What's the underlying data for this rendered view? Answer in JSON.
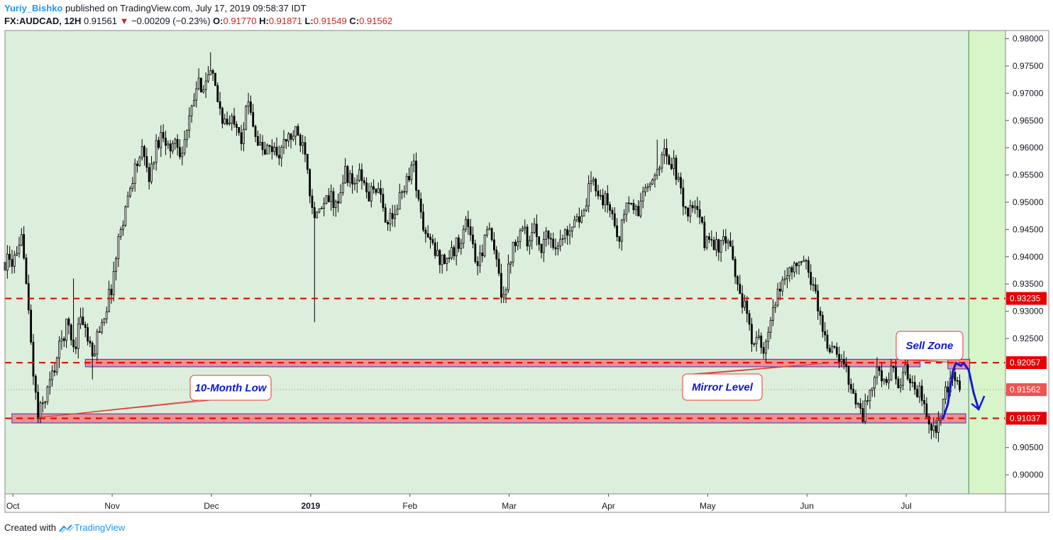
{
  "header": {
    "author": "Yuriy_Bishko",
    "published": "published on TradingView.com, July 17, 2019 09:58:37 IDT",
    "symbol": "FX:AUDCAD, 12H",
    "last": "0.91561",
    "change": "−0.00209 (−0.23%)",
    "o_label": "O:",
    "o": "0.91770",
    "h_label": "H:",
    "h": "0.91871",
    "l_label": "L:",
    "l": "0.91549",
    "c_label": "C:",
    "c": "0.91562"
  },
  "footer": {
    "created": "Created with",
    "brand": "TradingView"
  },
  "colors": {
    "background_zone": "#dcefdc",
    "forecast_zone": "#d7f5c9",
    "candle": "#000000",
    "level_line": "#e60000",
    "zone_fill": "#f08080",
    "zone_border": "#3b2fd6",
    "callout_border": "#e53935",
    "arrow": "#1515e0"
  },
  "chart_data": {
    "type": "candlestick",
    "symbol": "FX:AUDCAD",
    "timeframe": "12H",
    "ylim": [
      0.8965,
      0.9815
    ],
    "x_tick_labels": [
      "Oct",
      "Nov",
      "Dec",
      "2019",
      "Feb",
      "Mar",
      "Apr",
      "May",
      "Jun",
      "Jul"
    ],
    "x_tick_months": [
      0,
      1,
      2,
      3,
      4,
      5,
      6,
      7,
      8,
      9
    ],
    "month_start_of_range": -0.08,
    "month_end_of_range": 10.0,
    "y_ticks": [
      0.98,
      0.975,
      0.97,
      0.965,
      0.96,
      0.955,
      0.95,
      0.945,
      0.94,
      0.935,
      0.93,
      0.925,
      0.92,
      0.915,
      0.91,
      0.905,
      0.9
    ],
    "y_tick_labels": [
      "0.98000",
      "0.97500",
      "0.97000",
      "0.96500",
      "0.96000",
      "0.95500",
      "0.95000",
      "0.94500",
      "0.94000",
      "0.93500",
      "0.93000",
      "0.92500",
      "0.92000",
      "0.91500",
      "0.91000",
      "0.90500",
      "0.90000"
    ],
    "close_path": [
      [
        -0.08,
        0.939
      ],
      [
        0.05,
        0.9395
      ],
      [
        0.1,
        0.944
      ],
      [
        0.15,
        0.931
      ],
      [
        0.2,
        0.92
      ],
      [
        0.25,
        0.9105
      ],
      [
        0.32,
        0.914
      ],
      [
        0.4,
        0.9185
      ],
      [
        0.48,
        0.924
      ],
      [
        0.55,
        0.928
      ],
      [
        0.62,
        0.923
      ],
      [
        0.68,
        0.9295
      ],
      [
        0.75,
        0.925
      ],
      [
        0.8,
        0.921
      ],
      [
        0.86,
        0.9265
      ],
      [
        0.93,
        0.93
      ],
      [
        1.0,
        0.935
      ],
      [
        1.08,
        0.945
      ],
      [
        1.15,
        0.95
      ],
      [
        1.22,
        0.956
      ],
      [
        1.3,
        0.959
      ],
      [
        1.38,
        0.9545
      ],
      [
        1.45,
        0.961
      ],
      [
        1.52,
        0.963
      ],
      [
        1.58,
        0.959
      ],
      [
        1.63,
        0.962
      ],
      [
        1.7,
        0.959
      ],
      [
        1.78,
        0.965
      ],
      [
        1.85,
        0.971
      ],
      [
        1.92,
        0.972
      ],
      [
        2.0,
        0.9735
      ],
      [
        2.06,
        0.969
      ],
      [
        2.12,
        0.965
      ],
      [
        2.18,
        0.964
      ],
      [
        2.24,
        0.966
      ],
      [
        2.3,
        0.962
      ],
      [
        2.38,
        0.969
      ],
      [
        2.45,
        0.962
      ],
      [
        2.52,
        0.959
      ],
      [
        2.6,
        0.96
      ],
      [
        2.68,
        0.959
      ],
      [
        2.76,
        0.9615
      ],
      [
        2.85,
        0.9625
      ],
      [
        2.95,
        0.96
      ],
      [
        3.0,
        0.951
      ],
      [
        3.06,
        0.947
      ],
      [
        3.12,
        0.949
      ],
      [
        3.2,
        0.951
      ],
      [
        3.28,
        0.949
      ],
      [
        3.35,
        0.956
      ],
      [
        3.42,
        0.953
      ],
      [
        3.5,
        0.955
      ],
      [
        3.58,
        0.951
      ],
      [
        3.66,
        0.953
      ],
      [
        3.74,
        0.948
      ],
      [
        3.82,
        0.946
      ],
      [
        3.9,
        0.951
      ],
      [
        3.98,
        0.955
      ],
      [
        4.04,
        0.957
      ],
      [
        4.1,
        0.948
      ],
      [
        4.16,
        0.944
      ],
      [
        4.22,
        0.942
      ],
      [
        4.28,
        0.94
      ],
      [
        4.36,
        0.9395
      ],
      [
        4.44,
        0.941
      ],
      [
        4.52,
        0.944
      ],
      [
        4.58,
        0.947
      ],
      [
        4.63,
        0.942
      ],
      [
        4.68,
        0.938
      ],
      [
        4.72,
        0.94
      ],
      [
        4.76,
        0.946
      ],
      [
        4.82,
        0.943
      ],
      [
        4.88,
        0.938
      ],
      [
        4.93,
        0.933
      ],
      [
        4.98,
        0.936
      ],
      [
        5.03,
        0.942
      ],
      [
        5.08,
        0.944
      ],
      [
        5.14,
        0.946
      ],
      [
        5.2,
        0.942
      ],
      [
        5.26,
        0.945
      ],
      [
        5.32,
        0.942
      ],
      [
        5.38,
        0.944
      ],
      [
        5.44,
        0.943
      ],
      [
        5.5,
        0.942
      ],
      [
        5.56,
        0.944
      ],
      [
        5.62,
        0.946
      ],
      [
        5.68,
        0.948
      ],
      [
        5.74,
        0.946
      ],
      [
        5.8,
        0.952
      ],
      [
        5.86,
        0.954
      ],
      [
        5.92,
        0.951
      ],
      [
        5.98,
        0.95
      ],
      [
        6.04,
        0.948
      ],
      [
        6.08,
        0.944
      ],
      [
        6.12,
        0.944
      ],
      [
        6.18,
        0.95
      ],
      [
        6.24,
        0.949
      ],
      [
        6.3,
        0.948
      ],
      [
        6.36,
        0.953
      ],
      [
        6.42,
        0.952
      ],
      [
        6.48,
        0.956
      ],
      [
        6.54,
        0.959
      ],
      [
        6.6,
        0.958
      ],
      [
        6.66,
        0.957
      ],
      [
        6.72,
        0.952
      ],
      [
        6.8,
        0.948
      ],
      [
        6.86,
        0.949
      ],
      [
        6.92,
        0.947
      ],
      [
        6.98,
        0.942
      ],
      [
        7.02,
        0.944
      ],
      [
        7.08,
        0.942
      ],
      [
        7.14,
        0.942
      ],
      [
        7.2,
        0.943
      ],
      [
        7.26,
        0.938
      ],
      [
        7.32,
        0.934
      ],
      [
        7.38,
        0.93
      ],
      [
        7.44,
        0.925
      ],
      [
        7.5,
        0.926
      ],
      [
        7.56,
        0.921
      ],
      [
        7.62,
        0.927
      ],
      [
        7.68,
        0.931
      ],
      [
        7.74,
        0.935
      ],
      [
        7.8,
        0.937
      ],
      [
        7.86,
        0.9385
      ],
      [
        7.92,
        0.938
      ],
      [
        7.98,
        0.939
      ],
      [
        8.04,
        0.936
      ],
      [
        8.08,
        0.934
      ],
      [
        8.14,
        0.928
      ],
      [
        8.2,
        0.924
      ],
      [
        8.26,
        0.923
      ],
      [
        8.32,
        0.921
      ],
      [
        8.38,
        0.92
      ],
      [
        8.44,
        0.917
      ],
      [
        8.5,
        0.913
      ],
      [
        8.56,
        0.911
      ],
      [
        8.62,
        0.914
      ],
      [
        8.68,
        0.918
      ],
      [
        8.74,
        0.919
      ],
      [
        8.8,
        0.917
      ],
      [
        8.86,
        0.919
      ],
      [
        8.92,
        0.916
      ],
      [
        8.98,
        0.919
      ],
      [
        9.04,
        0.918
      ],
      [
        9.1,
        0.916
      ],
      [
        9.16,
        0.914
      ],
      [
        9.22,
        0.911
      ],
      [
        9.26,
        0.909
      ],
      [
        9.3,
        0.908
      ],
      [
        9.34,
        0.91
      ],
      [
        9.4,
        0.915
      ],
      [
        9.46,
        0.9175
      ],
      [
        9.52,
        0.917
      ],
      [
        9.56,
        0.9156
      ]
    ],
    "wick_extremes": [
      {
        "month": 0.25,
        "low": 0.9098
      },
      {
        "month": 0.8,
        "low": 0.9175
      },
      {
        "month": 2.0,
        "high": 0.9775
      },
      {
        "month": 3.05,
        "low": 0.928
      },
      {
        "month": 4.97,
        "low": 0.932
      },
      {
        "month": 6.5,
        "high": 0.9615
      },
      {
        "month": 9.3,
        "low": 0.9073
      },
      {
        "month": 1.0,
        "low": 0.932
      },
      {
        "month": 4.96,
        "low": 0.9315
      },
      {
        "month": 0.6,
        "high": 0.936
      }
    ],
    "last_price": 0.91562,
    "horizontal_levels": [
      {
        "price": 0.93235,
        "label": "0.93235"
      },
      {
        "price": 0.92057,
        "label": "0.92057"
      },
      {
        "price": 0.91037,
        "label": "0.91037"
      }
    ],
    "last_price_label": "0.91562",
    "zones": [
      {
        "name": "mirror-zone",
        "from_month": 0.73,
        "to_month": 9.14,
        "top": 0.9208,
        "bottom": 0.9202
      },
      {
        "name": "low-zone",
        "from_month": -0.01,
        "to_month": 9.6,
        "top": 0.9108,
        "bottom": 0.9099
      },
      {
        "name": "sell-zone",
        "from_month": 9.42,
        "to_month": 9.64,
        "top": 0.9208,
        "bottom": 0.9198
      }
    ],
    "forecast_start_month": 9.63,
    "forecast_path": [
      [
        9.37,
        0.9103
      ],
      [
        9.42,
        0.913
      ],
      [
        9.47,
        0.919
      ],
      [
        9.5,
        0.9205
      ],
      [
        9.55,
        0.92
      ],
      [
        9.58,
        0.9205
      ],
      [
        9.63,
        0.9192
      ],
      [
        9.68,
        0.915
      ],
      [
        9.73,
        0.912
      ]
    ],
    "forecast_arrow_tip": [
      9.73,
      0.912
    ],
    "annotations": [
      {
        "name": "low-callout",
        "text": "10-Month Low",
        "anchor_month": 0.25,
        "anchor_price": 0.9105
      },
      {
        "name": "mirror-callout",
        "text": "Mirror Level",
        "anchor_month": 8.22,
        "anchor_price": 0.9205
      },
      {
        "name": "sell-callout",
        "text": "Sell Zone",
        "anchor_month": 9.5,
        "anchor_price": 0.9206
      }
    ]
  }
}
